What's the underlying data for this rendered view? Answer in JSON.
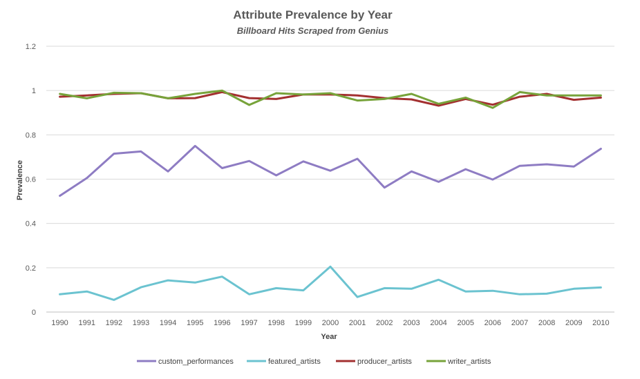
{
  "chart_data": {
    "type": "line",
    "title": "Attribute Prevalence by Year",
    "subtitle": "Billboard Hits Scraped from Genius",
    "xlabel": "Year",
    "ylabel": "Prevalence",
    "x": [
      "1990",
      "1991",
      "1992",
      "1993",
      "1994",
      "1995",
      "1996",
      "1997",
      "1998",
      "1999",
      "2000",
      "2001",
      "2002",
      "2003",
      "2004",
      "2005",
      "2006",
      "2007",
      "2008",
      "2009",
      "2010"
    ],
    "ylim": [
      0,
      1.2
    ],
    "yticks": [
      "0",
      "0.2",
      "0.4",
      "0.6",
      "0.8",
      "1",
      "1.2"
    ],
    "grid": true,
    "legend_position": "bottom",
    "series": [
      {
        "name": "custom_performances",
        "color": "#8e7cc3",
        "values": [
          0.525,
          0.605,
          0.715,
          0.725,
          0.635,
          0.75,
          0.65,
          0.682,
          0.617,
          0.68,
          0.638,
          0.692,
          0.562,
          0.635,
          0.588,
          0.645,
          0.598,
          0.66,
          0.667,
          0.657,
          0.737
        ]
      },
      {
        "name": "featured_artists",
        "color": "#6bc3d0",
        "values": [
          0.08,
          0.093,
          0.055,
          0.112,
          0.143,
          0.133,
          0.16,
          0.08,
          0.108,
          0.098,
          0.205,
          0.068,
          0.108,
          0.105,
          0.146,
          0.093,
          0.096,
          0.08,
          0.083,
          0.105,
          0.111
        ]
      },
      {
        "name": "producer_artists",
        "color": "#a33030",
        "values": [
          0.972,
          0.978,
          0.985,
          0.988,
          0.965,
          0.966,
          0.993,
          0.966,
          0.962,
          0.982,
          0.982,
          0.978,
          0.966,
          0.96,
          0.932,
          0.962,
          0.936,
          0.972,
          0.985,
          0.958,
          0.968
        ]
      },
      {
        "name": "writer_artists",
        "color": "#77a33a",
        "values": [
          0.985,
          0.965,
          0.99,
          0.988,
          0.965,
          0.985,
          1.0,
          0.935,
          0.988,
          0.982,
          0.988,
          0.955,
          0.962,
          0.985,
          0.94,
          0.968,
          0.922,
          0.993,
          0.978,
          0.978,
          0.978
        ]
      }
    ]
  }
}
